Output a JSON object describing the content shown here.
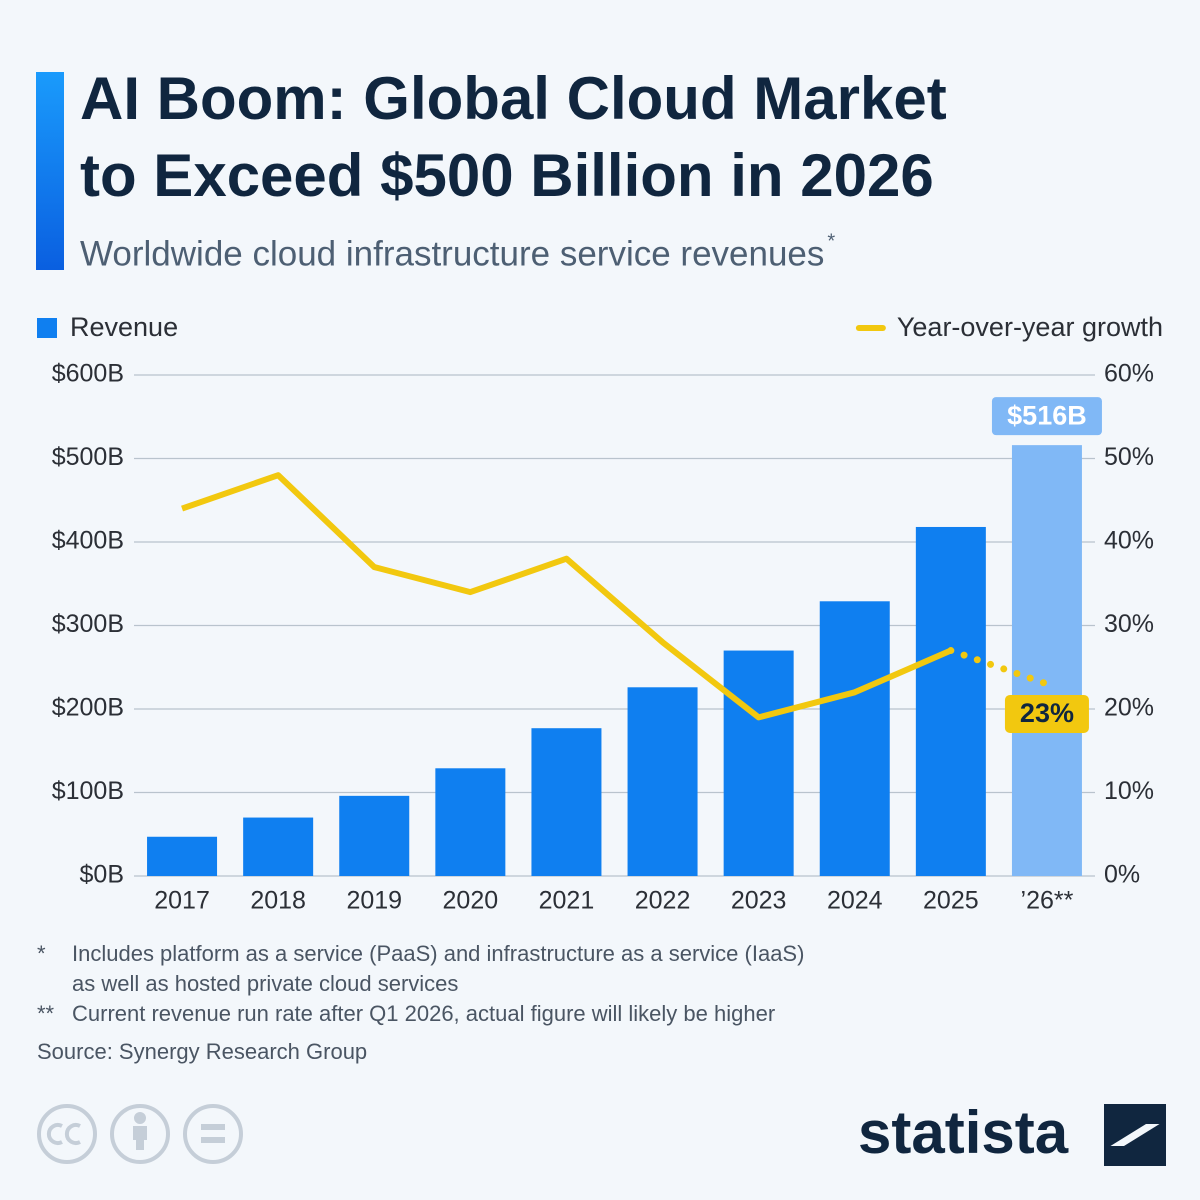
{
  "chart_data": {
    "type": "bar_line",
    "title": [
      "AI Boom: Global Cloud Market",
      "to Exceed $500 Billion in 2026"
    ],
    "subtitle": "Worldwide cloud infrastructure service revenues",
    "subtitle_mark": "*",
    "categories": [
      "2017",
      "2018",
      "2019",
      "2020",
      "2021",
      "2022",
      "2023",
      "2024",
      "2025",
      "’26**"
    ],
    "series": [
      {
        "name": "Revenue",
        "color": "#0f7ff0",
        "colors": [
          "#0f7ff0",
          "#0f7ff0",
          "#0f7ff0",
          "#0f7ff0",
          "#0f7ff0",
          "#0f7ff0",
          "#0f7ff0",
          "#0f7ff0",
          "#0f7ff0",
          "#80b8f6"
        ],
        "values": [
          47,
          70,
          96,
          129,
          177,
          226,
          270,
          329,
          418,
          516
        ],
        "value_labels": [
          null,
          null,
          null,
          null,
          null,
          null,
          null,
          null,
          null,
          "$516B"
        ]
      },
      {
        "name": "Year-over-year growth",
        "color": "#f2c80f",
        "axis": "y2",
        "values": [
          44,
          48,
          37,
          34,
          38,
          28,
          19,
          22,
          27,
          23
        ],
        "value_labels": [
          null,
          null,
          null,
          null,
          null,
          null,
          null,
          null,
          null,
          "23%"
        ]
      }
    ],
    "ylim": [
      0,
      600
    ],
    "yticks": [
      {
        "value": 0,
        "label": "$0B"
      },
      {
        "value": 100,
        "label": "$100B"
      },
      {
        "value": 200,
        "label": "$200B"
      },
      {
        "value": 300,
        "label": "$300B"
      },
      {
        "value": 400,
        "label": "$400B"
      },
      {
        "value": 500,
        "label": "$500B"
      },
      {
        "value": 600,
        "label": "$600B"
      }
    ],
    "y2lim": [
      0,
      60
    ],
    "y2ticks": [
      {
        "value": 0,
        "label": "0%"
      },
      {
        "value": 10,
        "label": "10%"
      },
      {
        "value": 20,
        "label": "20%"
      },
      {
        "value": 30,
        "label": "30%"
      },
      {
        "value": 40,
        "label": "40%"
      },
      {
        "value": 50,
        "label": "50%"
      },
      {
        "value": 60,
        "label": "60%"
      }
    ],
    "grid": true,
    "footnotes": [
      {
        "mark": "*",
        "lines": [
          "Includes platform as a service (PaaS) and infrastructure as a service (IaaS)",
          "as well as hosted private cloud services"
        ]
      },
      {
        "mark": "**",
        "lines": [
          "Current revenue run rate after Q1 2026, actual figure will likely be higher"
        ]
      }
    ],
    "source": "Source: Synergy Research Group",
    "brand": "statista"
  }
}
